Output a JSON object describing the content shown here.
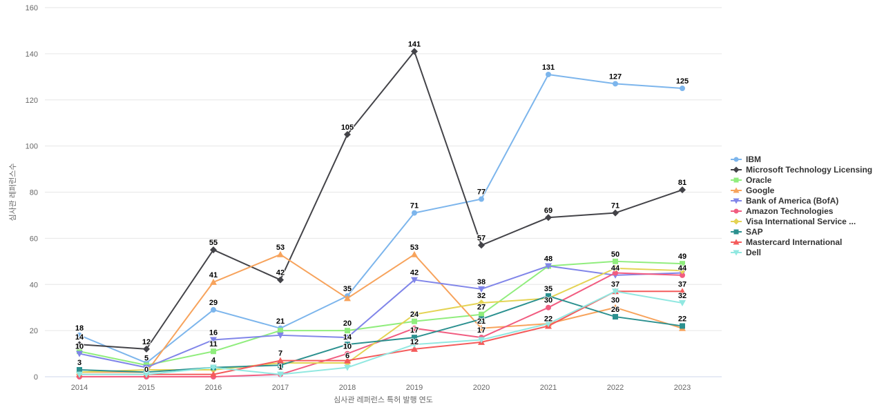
{
  "chart_data": {
    "type": "line",
    "title": "",
    "xlabel": "심사관 레퍼런스 특허 발행 연도",
    "ylabel": "심사관 레퍼런스수",
    "categories": [
      "2014",
      "2015",
      "2016",
      "2017",
      "2018",
      "2019",
      "2020",
      "2021",
      "2022",
      "2023"
    ],
    "ylim": [
      0,
      160
    ],
    "yticks": [
      0,
      20,
      40,
      60,
      80,
      100,
      120,
      140,
      160
    ],
    "grid": "horizontal",
    "legend_position": "right",
    "series": [
      {
        "name": "IBM",
        "color": "#7cb5ec",
        "symbol": "circle",
        "values": [
          18,
          6,
          29,
          21,
          35,
          71,
          77,
          131,
          127,
          125
        ],
        "label_visible": [
          true,
          false,
          true,
          true,
          true,
          true,
          true,
          true,
          true,
          true
        ]
      },
      {
        "name": "Microsoft Technology Licensing",
        "color": "#434348",
        "symbol": "diamond",
        "values": [
          14,
          12,
          55,
          42,
          105,
          141,
          57,
          69,
          71,
          81
        ],
        "label_visible": [
          true,
          true,
          true,
          true,
          true,
          true,
          true,
          true,
          true,
          true
        ]
      },
      {
        "name": "Oracle",
        "color": "#90ed7d",
        "symbol": "square",
        "values": [
          11,
          5,
          11,
          20,
          20,
          24,
          27,
          48,
          50,
          49
        ],
        "label_visible": [
          false,
          true,
          true,
          false,
          true,
          true,
          true,
          true,
          true,
          true
        ]
      },
      {
        "name": "Google",
        "color": "#f7a35c",
        "symbol": "triangle",
        "values": [
          2,
          2,
          41,
          53,
          34,
          53,
          21,
          23,
          30,
          21
        ],
        "label_visible": [
          false,
          false,
          true,
          true,
          false,
          true,
          true,
          false,
          true,
          false
        ]
      },
      {
        "name": "Bank of America (BofA)",
        "color": "#8085e9",
        "symbol": "triangle-down",
        "values": [
          10,
          4,
          16,
          18,
          17,
          42,
          38,
          48,
          44,
          45
        ],
        "label_visible": [
          true,
          false,
          true,
          false,
          false,
          true,
          true,
          false,
          true,
          false
        ]
      },
      {
        "name": "Amazon Technologies",
        "color": "#f15c80",
        "symbol": "circle",
        "values": [
          0,
          0,
          0,
          1,
          10,
          21,
          17,
          30,
          45,
          44
        ],
        "label_visible": [
          false,
          true,
          false,
          false,
          true,
          false,
          true,
          true,
          false,
          true
        ]
      },
      {
        "name": "Visa International Service ...",
        "color": "#e4d354",
        "symbol": "diamond",
        "values": [
          2,
          3,
          3,
          6,
          6,
          27,
          32,
          34,
          47,
          46
        ],
        "label_visible": [
          false,
          false,
          false,
          false,
          true,
          false,
          true,
          false,
          false,
          false
        ]
      },
      {
        "name": "SAP",
        "color": "#2b908f",
        "symbol": "square",
        "values": [
          3,
          2,
          4,
          5,
          14,
          17,
          25,
          35,
          26,
          22
        ],
        "label_visible": [
          true,
          false,
          true,
          false,
          true,
          true,
          false,
          true,
          true,
          true
        ]
      },
      {
        "name": "Mastercard International",
        "color": "#f45b5b",
        "symbol": "triangle",
        "values": [
          1,
          1,
          1,
          7,
          7,
          12,
          15,
          22,
          37,
          37
        ],
        "label_visible": [
          false,
          false,
          false,
          true,
          false,
          true,
          false,
          true,
          true,
          true
        ]
      },
      {
        "name": "Dell",
        "color": "#91e8e1",
        "symbol": "triangle-down",
        "values": [
          1,
          1,
          4,
          1,
          4,
          14,
          16,
          23,
          37,
          32
        ],
        "label_visible": [
          false,
          false,
          false,
          true,
          false,
          false,
          false,
          false,
          false,
          true
        ]
      }
    ],
    "axis_colors": {
      "grid": "#e6e6e6",
      "axis_line": "#ccd6eb",
      "tick_text": "#666666"
    }
  }
}
